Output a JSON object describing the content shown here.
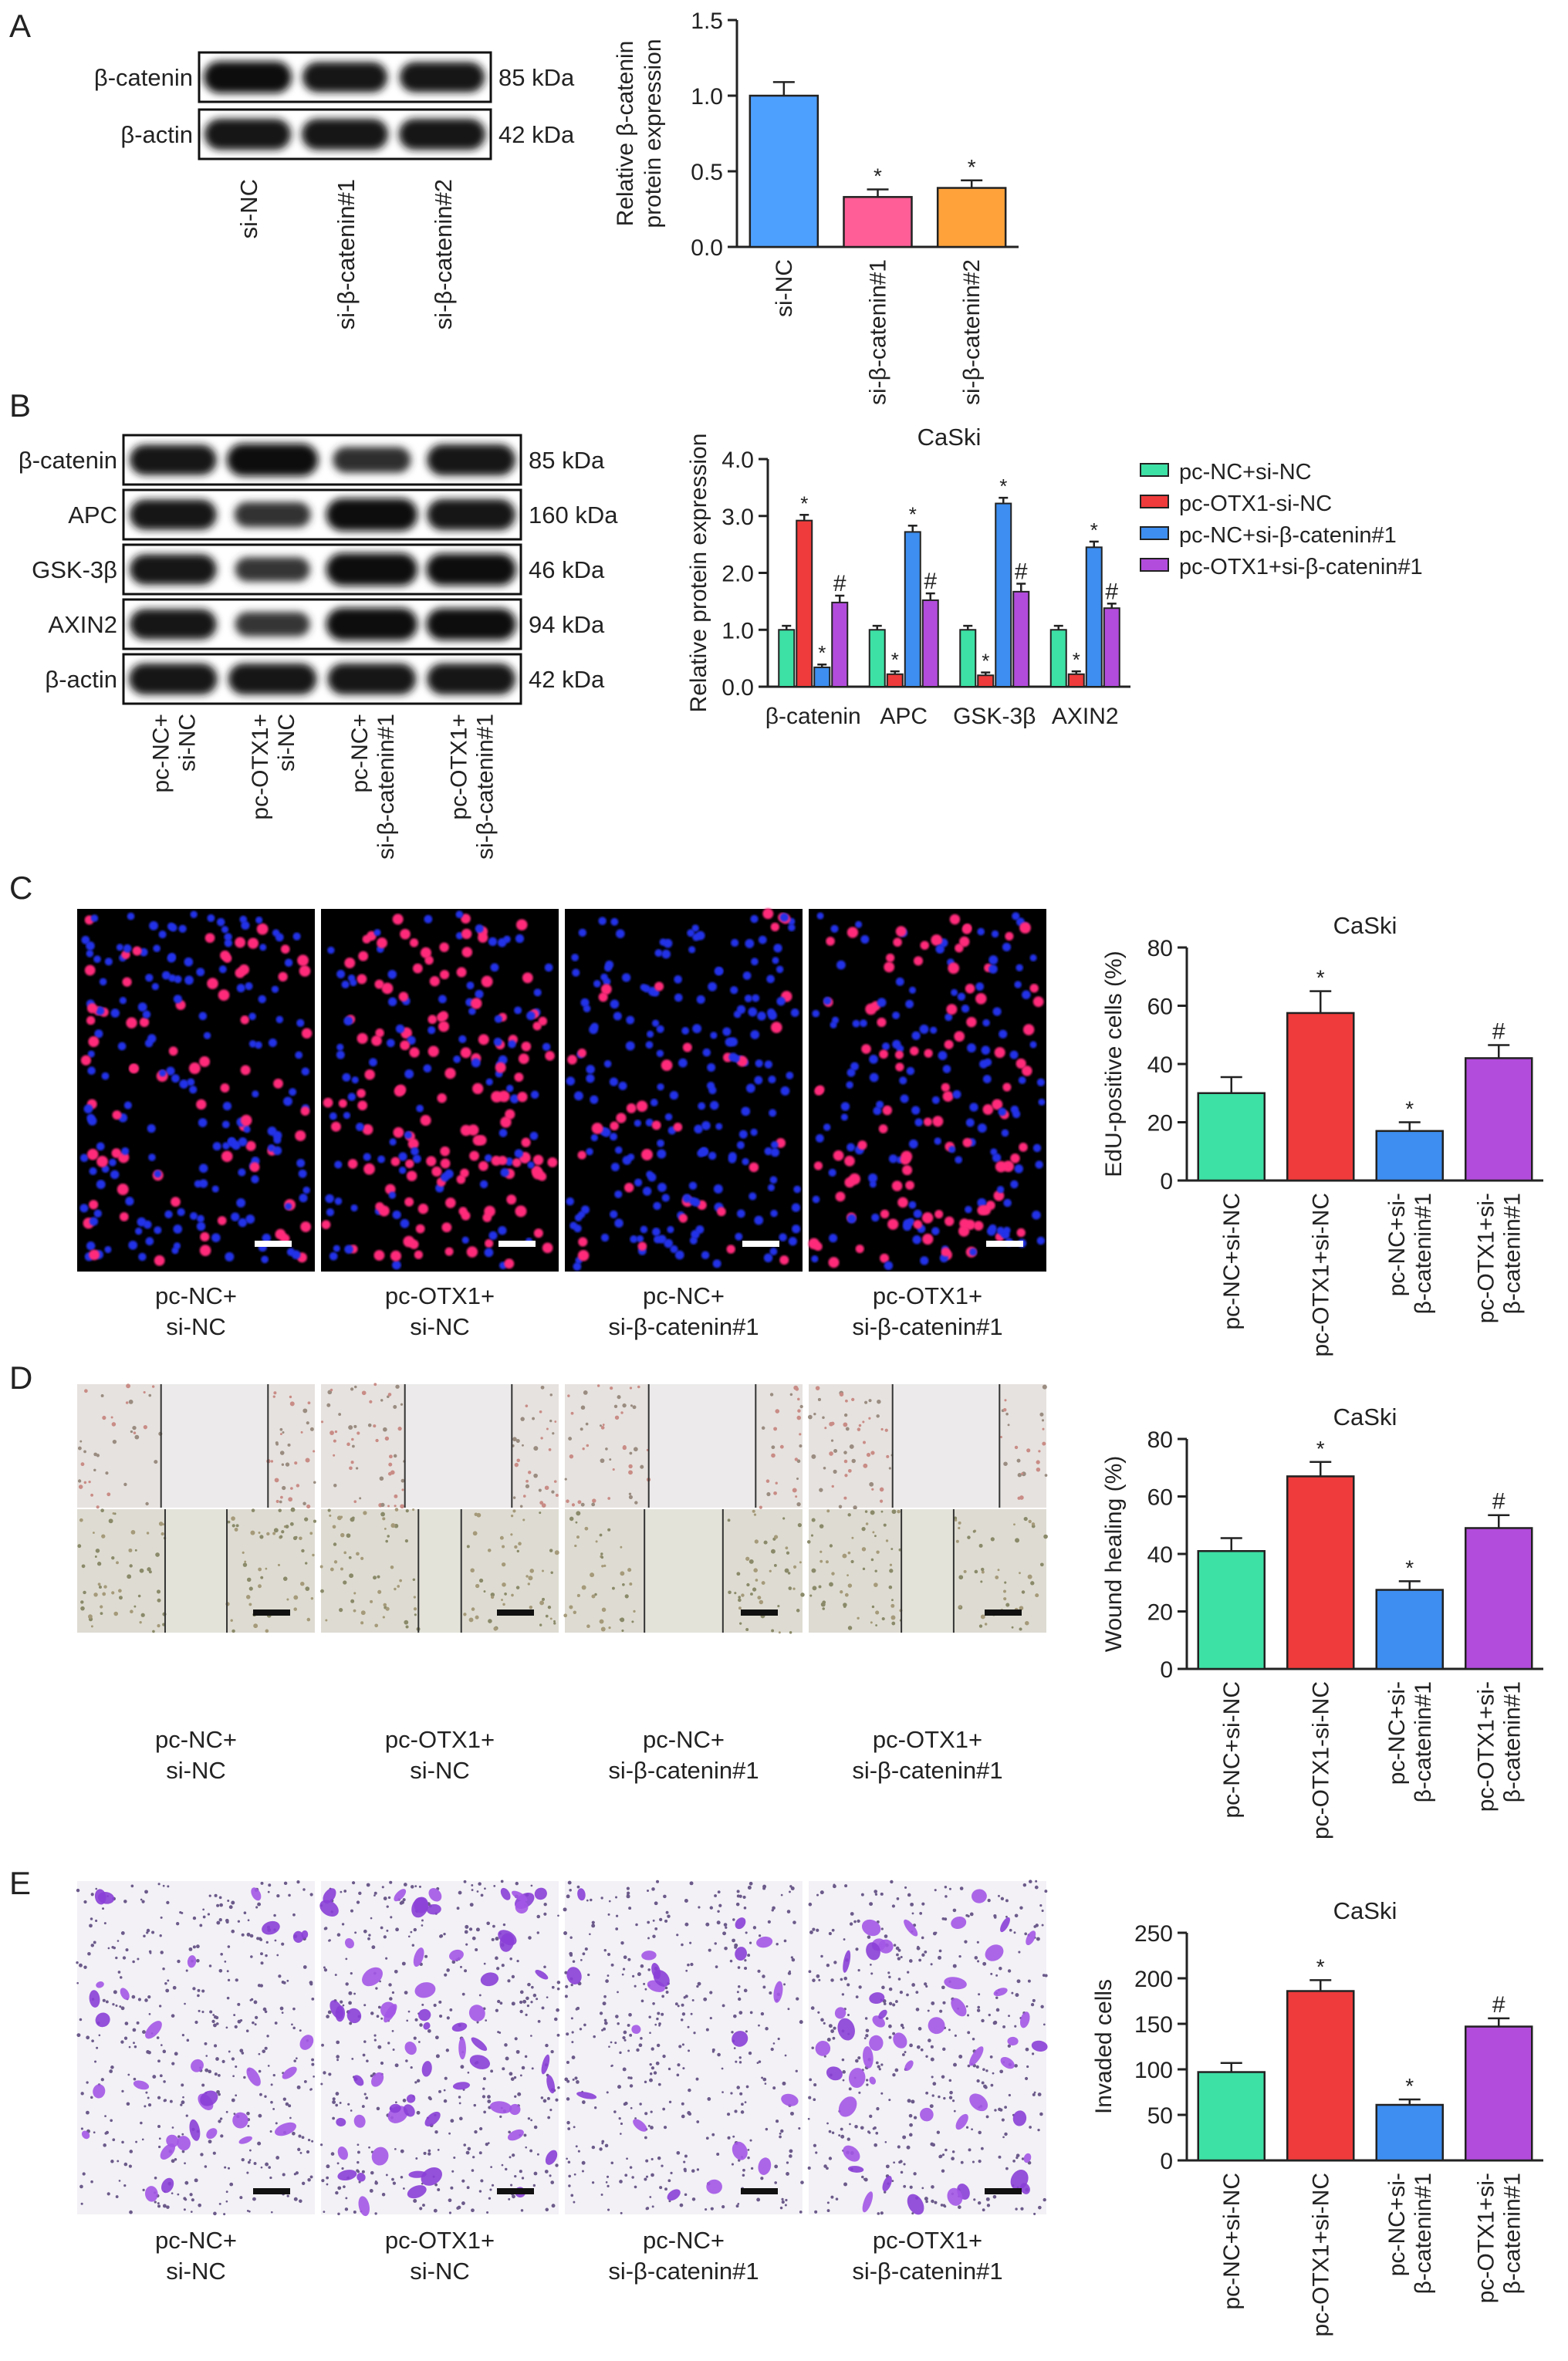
{
  "figure": {
    "panel_labels": [
      "A",
      "B",
      "C",
      "D",
      "E"
    ],
    "scale_bar_count": 12
  },
  "blot_a": {
    "rows": [
      {
        "label": "β-catenin",
        "kda": "85 kDa",
        "intensity": [
          0.95,
          0.85,
          0.85
        ]
      },
      {
        "label": "β-actin",
        "kda": "42 kDa",
        "intensity": [
          0.9,
          0.9,
          0.9
        ]
      }
    ],
    "lanes": [
      "si-NC",
      "si-β-catenin#1",
      "si-β-catenin#2"
    ]
  },
  "blot_b": {
    "rows": [
      {
        "label": "β-catenin",
        "kda": "85 kDa",
        "intensity": [
          0.85,
          1.0,
          0.55,
          0.9
        ]
      },
      {
        "label": "APC",
        "kda": "160 kDa",
        "intensity": [
          0.85,
          0.5,
          1.0,
          0.9
        ]
      },
      {
        "label": "GSK-3β",
        "kda": "46 kDa",
        "intensity": [
          0.85,
          0.45,
          1.0,
          0.95
        ]
      },
      {
        "label": "AXIN2",
        "kda": "94 kDa",
        "intensity": [
          0.85,
          0.45,
          1.0,
          0.95
        ]
      },
      {
        "label": "β-actin",
        "kda": "42 kDa",
        "intensity": [
          0.9,
          0.9,
          0.9,
          0.9
        ]
      }
    ],
    "lanes": [
      [
        "pc-NC+",
        "si-NC"
      ],
      [
        "pc-OTX1+",
        "si-NC"
      ],
      [
        "pc-NC+",
        "si-β-catenin#1"
      ],
      [
        "pc-OTX1+",
        "si-β-catenin#1"
      ]
    ]
  },
  "image_panels": {
    "c_captions": [
      [
        "pc-NC+",
        "si-NC"
      ],
      [
        "pc-OTX1+",
        "si-NC"
      ],
      [
        "pc-NC+",
        "si-β-catenin#1"
      ],
      [
        "pc-OTX1+",
        "si-β-catenin#1"
      ]
    ],
    "d_captions": [
      [
        "pc-NC+",
        "si-NC"
      ],
      [
        "pc-OTX1+",
        "si-NC"
      ],
      [
        "pc-NC+",
        "si-β-catenin#1"
      ],
      [
        "pc-OTX1+",
        "si-β-catenin#1"
      ]
    ],
    "e_captions": [
      [
        "pc-NC+",
        "si-NC"
      ],
      [
        "pc-OTX1+",
        "si-NC"
      ],
      [
        "pc-NC+",
        "si-β-catenin#1"
      ],
      [
        "pc-OTX1+",
        "si-β-catenin#1"
      ]
    ],
    "edu_positive_fraction": [
      0.3,
      0.58,
      0.17,
      0.42
    ],
    "wound_gap_fraction": [
      [
        0.45,
        0.26
      ],
      [
        0.45,
        0.18
      ],
      [
        0.45,
        0.33
      ],
      [
        0.45,
        0.22
      ]
    ],
    "invaded_density": [
      0.26,
      0.5,
      0.16,
      0.4
    ]
  },
  "chart_data": [
    {
      "type": "bar",
      "panel": "A",
      "title": "",
      "ylabel": "Relative β-catenin\nprotein expression",
      "xlabel": "",
      "categories": [
        "si-NC",
        "si-β-catenin#1",
        "si-β-catenin#2"
      ],
      "values": [
        1.0,
        0.33,
        0.39
      ],
      "errors": [
        0.09,
        0.05,
        0.05
      ],
      "marks": [
        "",
        "*",
        "*"
      ],
      "colors": [
        "#4ea0ff",
        "#ff5f96",
        "#ffa23a"
      ],
      "ylim": [
        0,
        1.5
      ],
      "yticks": [
        "0.0",
        "0.5",
        "1.0",
        "1.5"
      ]
    },
    {
      "type": "bar",
      "panel": "B",
      "title": "CaSki",
      "ylabel": "Relative protein expression",
      "xlabel": "",
      "categories": [
        "β-catenin",
        "APC",
        "GSK-3β",
        "AXIN2"
      ],
      "series": [
        {
          "name": "pc-NC+si-NC",
          "color": "#3de0a5",
          "values": [
            1.0,
            1.0,
            1.0,
            1.0
          ],
          "errors": [
            0.07,
            0.07,
            0.07,
            0.07
          ],
          "marks": [
            "",
            "",
            "",
            ""
          ]
        },
        {
          "name": "pc-OTX1-si-NC",
          "color": "#ef3b3b",
          "values": [
            2.92,
            0.22,
            0.2,
            0.22
          ],
          "errors": [
            0.1,
            0.05,
            0.05,
            0.05
          ],
          "marks": [
            "*",
            "*",
            "*",
            "*"
          ]
        },
        {
          "name": "pc-NC+si-β-catenin#1",
          "color": "#3d8ef0",
          "values": [
            0.34,
            2.72,
            3.22,
            2.45
          ],
          "errors": [
            0.05,
            0.11,
            0.1,
            0.1
          ],
          "marks": [
            "*",
            "*",
            "*",
            "*"
          ]
        },
        {
          "name": "pc-OTX1+si-β-catenin#1",
          "color": "#b24cdc",
          "values": [
            1.48,
            1.52,
            1.67,
            1.38
          ],
          "errors": [
            0.12,
            0.12,
            0.14,
            0.08
          ],
          "marks": [
            "#",
            "#",
            "#",
            "#"
          ]
        }
      ],
      "ylim": [
        0,
        4.0
      ],
      "yticks": [
        "0.0",
        "1.0",
        "2.0",
        "3.0",
        "4.0"
      ],
      "legend": "right"
    },
    {
      "type": "bar",
      "panel": "C",
      "title": "CaSki",
      "ylabel": "EdU-positive cells (%)",
      "xlabel": "",
      "categories": [
        "pc-NC+si-NC",
        "pc-OTX1+si-NC",
        "pc-NC+si-\nβ-catenin#1",
        "pc-OTX1+si-\nβ-catenin#1"
      ],
      "values": [
        30,
        57.5,
        17,
        42
      ],
      "errors": [
        5.5,
        7.5,
        3,
        4.5
      ],
      "marks": [
        "",
        "*",
        "*",
        "#"
      ],
      "colors": [
        "#3de0a5",
        "#ef3b3b",
        "#3d8ef0",
        "#b24cdc"
      ],
      "ylim": [
        0,
        80
      ],
      "yticks": [
        "0",
        "20",
        "40",
        "60",
        "80"
      ]
    },
    {
      "type": "bar",
      "panel": "D",
      "title": "CaSki",
      "ylabel": "Wound healing (%)",
      "xlabel": "",
      "categories": [
        "pc-NC+si-NC",
        "pc-OTX1-si-NC",
        "pc-NC+si-\nβ-catenin#1",
        "pc-OTX1+si-\nβ-catenin#1"
      ],
      "values": [
        41,
        67,
        27.5,
        49
      ],
      "errors": [
        4.5,
        5,
        3,
        4.5
      ],
      "marks": [
        "",
        "*",
        "*",
        "#"
      ],
      "colors": [
        "#3de0a5",
        "#ef3b3b",
        "#3d8ef0",
        "#b24cdc"
      ],
      "ylim": [
        0,
        80
      ],
      "yticks": [
        "0",
        "20",
        "40",
        "60",
        "80"
      ]
    },
    {
      "type": "bar",
      "panel": "E",
      "title": "CaSki",
      "ylabel": "Invaded cells",
      "xlabel": "",
      "categories": [
        "pc-NC+si-NC",
        "pc-OTX1+si-NC",
        "pc-NC+si-\nβ-catenin#1",
        "pc-OTX1+si-\nβ-catenin#1"
      ],
      "values": [
        97,
        186,
        61,
        147
      ],
      "errors": [
        10,
        12,
        6,
        9
      ],
      "marks": [
        "",
        "*",
        "*",
        "#"
      ],
      "colors": [
        "#3de0a5",
        "#ef3b3b",
        "#3d8ef0",
        "#b24cdc"
      ],
      "ylim": [
        0,
        250
      ],
      "yticks": [
        "0",
        "50",
        "100",
        "150",
        "200",
        "250"
      ]
    }
  ]
}
